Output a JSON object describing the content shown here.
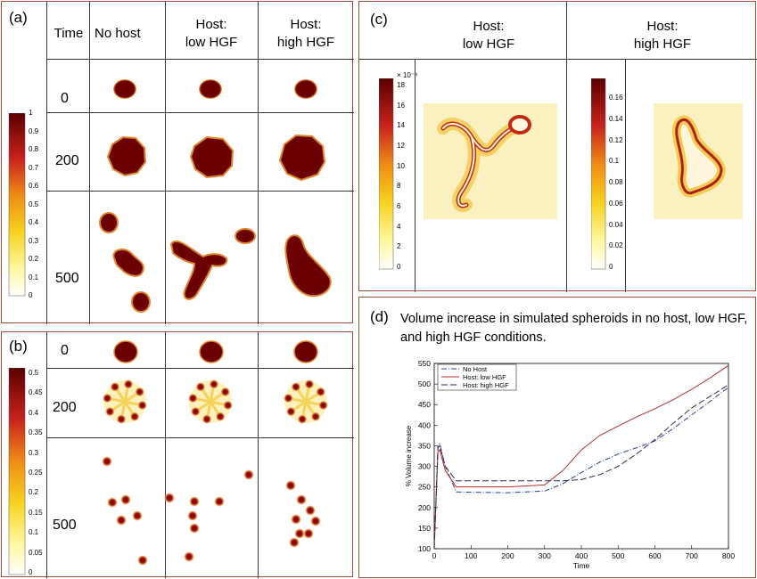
{
  "panel_a": {
    "label": "(a)",
    "col_time": "Time",
    "col_nohost": "No host",
    "col_low": [
      "Host:",
      "low HGF"
    ],
    "col_high": [
      "Host:",
      "high HGF"
    ],
    "rows": [
      "0",
      "200",
      "500"
    ],
    "colorbar_ticks": [
      "1",
      "0.9",
      "0.8",
      "0.7",
      "0.6",
      "0.5",
      "0.4",
      "0.3",
      "0.2",
      "0.1",
      "0"
    ]
  },
  "panel_b": {
    "label": "(b)",
    "rows": [
      "0",
      "200",
      "500"
    ],
    "colorbar_ticks": [
      "0.5",
      "0.45",
      "0.4",
      "0.35",
      "0.3",
      "0.25",
      "0.2",
      "0.15",
      "0.1",
      "0.05",
      "0"
    ]
  },
  "panel_c": {
    "label": "(c)",
    "col_low": [
      "Host:",
      "low HGF"
    ],
    "col_high": [
      "Host:",
      "high HGF"
    ],
    "colorbar1_exp": "× 10⁻⁴",
    "colorbar1_ticks": [
      "18",
      "16",
      "14",
      "12",
      "10",
      "8",
      "6",
      "4",
      "2",
      "0"
    ],
    "colorbar2_ticks": [
      "0.16",
      "0.14",
      "0.12",
      "0.1",
      "0.08",
      "0.06",
      "0.04",
      "0.02",
      "0"
    ]
  },
  "panel_d": {
    "label": "(d)",
    "caption": "Volume increase in simulated spheroids in no host, low HGF, and high HGF conditions."
  },
  "colors": {
    "frame": "#a04a3c",
    "dark_red": "#6b0000",
    "series_low": "#b03030",
    "series_nohost": "#2c3f8a",
    "series_high": "#2a2a50"
  },
  "chart_data": {
    "type": "line",
    "xlabel": "Time",
    "ylabel": "% Volume increase",
    "xlim": [
      0,
      800
    ],
    "ylim": [
      100,
      550
    ],
    "xticks": [
      "0",
      "100",
      "200",
      "300",
      "400",
      "500",
      "600",
      "700",
      "800"
    ],
    "yticks": [
      "100",
      "150",
      "200",
      "250",
      "300",
      "350",
      "400",
      "450",
      "500",
      "550"
    ],
    "legend": "top-left",
    "series": [
      {
        "name": "No Host",
        "style": "dashdot",
        "x": [
          0,
          10,
          15,
          30,
          60,
          100,
          200,
          300,
          350,
          400,
          450,
          500,
          550,
          600,
          650,
          700,
          750,
          800
        ],
        "y": [
          100,
          350,
          355,
          300,
          238,
          237,
          236,
          240,
          258,
          285,
          310,
          330,
          345,
          362,
          392,
          425,
          458,
          492
        ]
      },
      {
        "name": "Host: low HGF",
        "style": "solid",
        "x": [
          0,
          10,
          15,
          30,
          60,
          100,
          200,
          300,
          350,
          400,
          450,
          500,
          550,
          600,
          650,
          700,
          750,
          800
        ],
        "y": [
          100,
          335,
          340,
          290,
          250,
          250,
          250,
          255,
          290,
          340,
          375,
          398,
          420,
          440,
          462,
          487,
          515,
          545
        ]
      },
      {
        "name": "Host: high HGF",
        "style": "dashed",
        "x": [
          0,
          10,
          15,
          30,
          60,
          100,
          200,
          300,
          350,
          400,
          450,
          500,
          550,
          600,
          650,
          700,
          750,
          800
        ],
        "y": [
          100,
          345,
          350,
          300,
          265,
          265,
          265,
          265,
          265,
          268,
          280,
          300,
          330,
          365,
          405,
          442,
          470,
          498
        ]
      }
    ]
  }
}
